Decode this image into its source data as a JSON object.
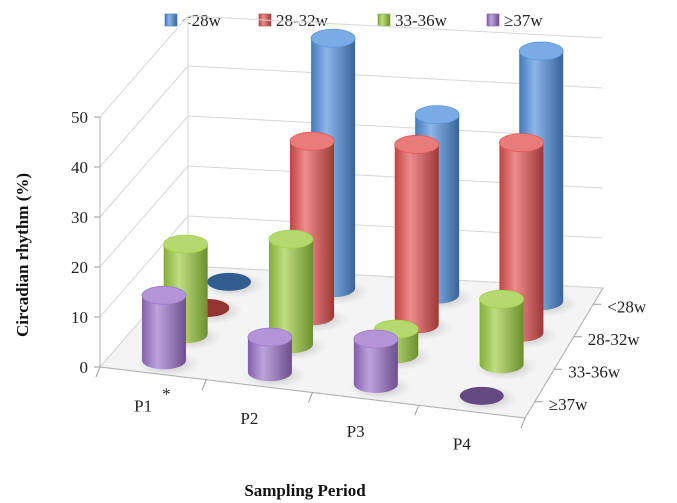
{
  "chart_data": {
    "type": "bar",
    "variant": "3d-cylinder",
    "title": "",
    "xlabel": "Sampling Period",
    "ylabel": "Circadian rhythm (%)",
    "zlabel": "",
    "ylim": [
      0,
      50
    ],
    "yticks": [
      "0",
      "10",
      "20",
      "30",
      "40",
      "50"
    ],
    "categories": [
      "P1",
      "P2",
      "P3",
      "P4"
    ],
    "category_annotations": [
      "*",
      "",
      "",
      ""
    ],
    "series": [
      {
        "name": "<28w",
        "color": "#4f8fdc",
        "values": [
          0,
          50,
          36,
          50
        ]
      },
      {
        "name": "28-32w",
        "color": "#e2504e",
        "values": [
          0,
          35,
          36,
          38
        ]
      },
      {
        "name": "33-36w",
        "color": "#9ccc3e",
        "values": [
          18,
          21,
          5,
          13
        ]
      },
      {
        "name": "≥37w",
        "color": "#9a71c9",
        "values": [
          13,
          7,
          9,
          0
        ]
      }
    ],
    "depth_labels": [
      "<28w",
      "28-32w",
      "33-36w",
      "≥37w"
    ],
    "legend_position": "top",
    "grid": true
  }
}
